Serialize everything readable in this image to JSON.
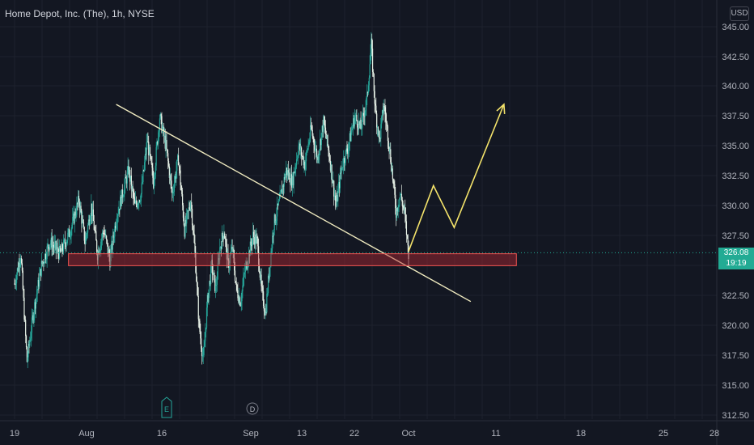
{
  "header": {
    "title": "Home Depot, Inc. (The), 1h, NYSE"
  },
  "currency": "USD",
  "price_label": {
    "price": "326.08",
    "countdown": "19:19"
  },
  "colors": {
    "background": "#131722",
    "candle": "#26a69a",
    "candle_down": "#e6f0e6",
    "trendline": "#f0ebc0",
    "zone_fill": "#b22833",
    "zone_border": "#ef5350",
    "forecast": "#f5e46b",
    "price_tag": "#22ab94"
  },
  "icons": [
    "earnings-marker-icon",
    "dividend-marker-icon"
  ],
  "markers": [
    {
      "label": "E",
      "date": "Aug 17"
    },
    {
      "label": "D",
      "date": "Sep 1"
    }
  ],
  "chart_data": {
    "type": "candlestick",
    "title": "Home Depot, Inc. (The), 1h, NYSE",
    "interval": "1h",
    "x_tick_labels": [
      "19",
      "Aug",
      "16",
      "Sep",
      "13",
      "22",
      "Oct",
      "11",
      "18",
      "25",
      "28"
    ],
    "y_tick_labels": [
      "345.00",
      "342.50",
      "340.00",
      "337.50",
      "335.00",
      "332.50",
      "330.00",
      "327.50",
      "325.00",
      "322.50",
      "320.00",
      "317.50",
      "315.00",
      "312.50"
    ],
    "ylim": [
      312.5,
      346
    ],
    "y_unit": "USD",
    "last_price": 326.08,
    "grid": true,
    "series": [
      {
        "type": "candlestick",
        "close_path": [
          [
            0,
            323.5
          ],
          [
            3,
            326
          ],
          [
            6,
            317
          ],
          [
            9,
            321
          ],
          [
            13,
            325
          ],
          [
            17,
            327
          ],
          [
            22,
            326
          ],
          [
            27,
            328
          ],
          [
            31,
            330.5
          ],
          [
            34,
            327
          ],
          [
            37,
            330
          ],
          [
            40,
            326
          ],
          [
            43,
            328
          ],
          [
            46,
            325.5
          ],
          [
            49,
            329
          ],
          [
            52,
            331
          ],
          [
            55,
            333
          ],
          [
            58,
            330
          ],
          [
            61,
            331
          ],
          [
            64,
            335.5
          ],
          [
            67,
            332
          ],
          [
            70,
            337.5
          ],
          [
            73,
            335
          ],
          [
            76,
            331
          ],
          [
            79,
            334
          ],
          [
            82,
            328
          ],
          [
            85,
            330.5
          ],
          [
            87,
            326
          ],
          [
            89,
            320
          ],
          [
            91,
            317
          ],
          [
            93,
            322
          ],
          [
            95,
            325
          ],
          [
            97,
            323
          ],
          [
            99,
            326.5
          ],
          [
            101,
            328
          ],
          [
            103,
            325
          ],
          [
            105,
            326.5
          ],
          [
            107,
            323
          ],
          [
            109,
            322
          ],
          [
            111,
            324.5
          ],
          [
            113,
            326
          ],
          [
            115,
            327.5
          ],
          [
            117,
            327
          ],
          [
            119,
            323
          ],
          [
            121,
            321
          ],
          [
            123,
            325
          ],
          [
            125,
            328.5
          ],
          [
            128,
            330.5
          ],
          [
            131,
            333
          ],
          [
            134,
            332
          ],
          [
            137,
            335
          ],
          [
            140,
            333.5
          ],
          [
            143,
            336.5
          ],
          [
            146,
            334
          ],
          [
            149,
            337
          ],
          [
            152,
            334
          ],
          [
            155,
            330
          ],
          [
            158,
            333.5
          ],
          [
            161,
            335
          ],
          [
            164,
            337.5
          ],
          [
            167,
            336.5
          ],
          [
            170,
            339
          ],
          [
            172,
            343.5
          ],
          [
            174,
            338
          ],
          [
            176,
            335.5
          ],
          [
            178,
            338.5
          ],
          [
            180,
            336
          ],
          [
            182,
            333
          ],
          [
            184,
            329.5
          ],
          [
            186,
            331
          ],
          [
            188,
            329.5
          ],
          [
            190,
            326.1
          ]
        ]
      }
    ],
    "annotations": [
      {
        "type": "trendline",
        "from": [
          49,
          338.5
        ],
        "to": [
          220,
          322
        ]
      },
      {
        "type": "zone",
        "x_range": [
          26,
          242
        ],
        "y_range": [
          325.0,
          326.0
        ]
      },
      {
        "type": "forecast_path",
        "points": [
          [
            190,
            326.2
          ],
          [
            202,
            331.7
          ],
          [
            212,
            328.2
          ],
          [
            236,
            338.5
          ]
        ]
      }
    ]
  }
}
